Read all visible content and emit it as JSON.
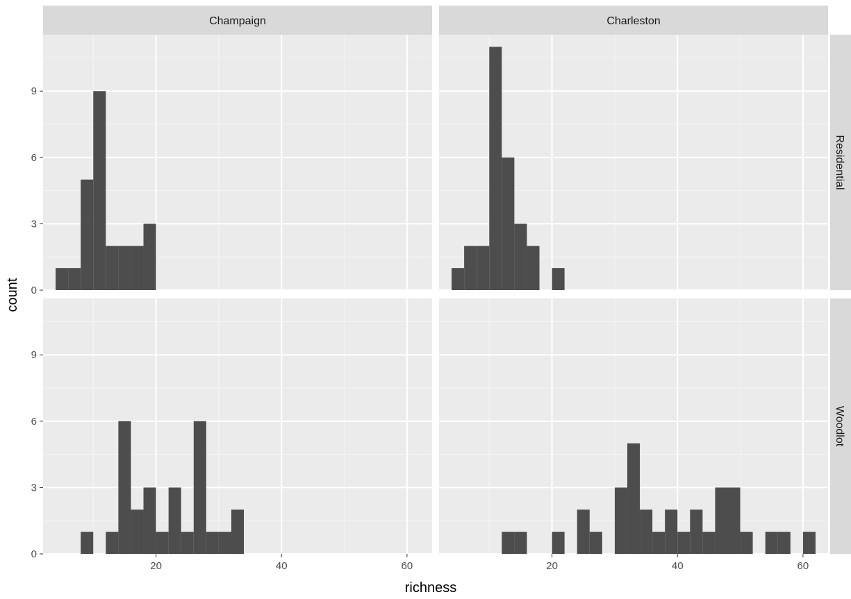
{
  "chart_data": {
    "type": "bar",
    "subtype": "faceted-histogram",
    "xlabel": "richness",
    "ylabel": "count",
    "xlim": [
      2,
      64
    ],
    "ylim": [
      0,
      11.55
    ],
    "xticks": [
      20,
      40,
      60
    ],
    "yticks": [
      0,
      3,
      6,
      9
    ],
    "bin_width": 2,
    "grid": true,
    "facet_cols": [
      "Champaign",
      "Charleston"
    ],
    "facet_rows": [
      "Residential",
      "Woodlot"
    ],
    "panels": [
      {
        "col": "Champaign",
        "row": "Residential",
        "bins": [
          {
            "x": 5,
            "count": 1
          },
          {
            "x": 7,
            "count": 1
          },
          {
            "x": 9,
            "count": 5
          },
          {
            "x": 11,
            "count": 9
          },
          {
            "x": 13,
            "count": 2
          },
          {
            "x": 15,
            "count": 2
          },
          {
            "x": 17,
            "count": 2
          },
          {
            "x": 19,
            "count": 3
          }
        ]
      },
      {
        "col": "Charleston",
        "row": "Residential",
        "bins": [
          {
            "x": 5,
            "count": 1
          },
          {
            "x": 7,
            "count": 2
          },
          {
            "x": 9,
            "count": 2
          },
          {
            "x": 11,
            "count": 11
          },
          {
            "x": 13,
            "count": 6
          },
          {
            "x": 15,
            "count": 3
          },
          {
            "x": 17,
            "count": 2
          },
          {
            "x": 21,
            "count": 1
          }
        ]
      },
      {
        "col": "Champaign",
        "row": "Woodlot",
        "bins": [
          {
            "x": 9,
            "count": 1
          },
          {
            "x": 13,
            "count": 1
          },
          {
            "x": 15,
            "count": 6
          },
          {
            "x": 17,
            "count": 2
          },
          {
            "x": 19,
            "count": 3
          },
          {
            "x": 21,
            "count": 1
          },
          {
            "x": 23,
            "count": 3
          },
          {
            "x": 25,
            "count": 1
          },
          {
            "x": 27,
            "count": 6
          },
          {
            "x": 29,
            "count": 1
          },
          {
            "x": 31,
            "count": 1
          },
          {
            "x": 33,
            "count": 2
          }
        ]
      },
      {
        "col": "Charleston",
        "row": "Woodlot",
        "bins": [
          {
            "x": 13,
            "count": 1
          },
          {
            "x": 15,
            "count": 1
          },
          {
            "x": 21,
            "count": 1
          },
          {
            "x": 25,
            "count": 2
          },
          {
            "x": 27,
            "count": 1
          },
          {
            "x": 31,
            "count": 3
          },
          {
            "x": 33,
            "count": 5
          },
          {
            "x": 35,
            "count": 2
          },
          {
            "x": 37,
            "count": 1
          },
          {
            "x": 39,
            "count": 2
          },
          {
            "x": 41,
            "count": 1
          },
          {
            "x": 43,
            "count": 2
          },
          {
            "x": 45,
            "count": 1
          },
          {
            "x": 47,
            "count": 3
          },
          {
            "x": 49,
            "count": 3
          },
          {
            "x": 51,
            "count": 1
          },
          {
            "x": 55,
            "count": 1
          },
          {
            "x": 57,
            "count": 1
          },
          {
            "x": 61,
            "count": 1
          }
        ]
      }
    ],
    "colors": {
      "bar": "#4d4d4d",
      "panel_background": "#ebebeb",
      "grid_major": "#ffffff",
      "strip_background": "#d9d9d9",
      "tick_text": "#4d4d4d"
    }
  }
}
